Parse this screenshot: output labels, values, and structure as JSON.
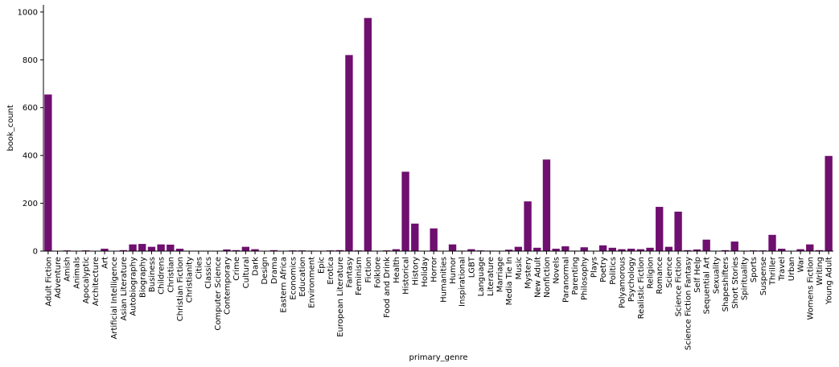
{
  "chart_data": {
    "type": "bar",
    "xlabel": "primary_genre",
    "ylabel": "book_count",
    "ylim": [
      0,
      1030
    ],
    "yticks": [
      0,
      200,
      400,
      600,
      800,
      1000
    ],
    "bar_color": "#6f0f6f",
    "grid": false,
    "categories": [
      "Adult Fiction",
      "Adventure",
      "Amish",
      "Animals",
      "Apocalyptic",
      "Architecture",
      "Art",
      "Artificial Intelligence",
      "Asian Literature",
      "Autobiography",
      "Biography",
      "Business",
      "Childrens",
      "Christian",
      "Christian Fiction",
      "Christianity",
      "Cities",
      "Classics",
      "Computer Science",
      "Contemporary",
      "Crime",
      "Cultural",
      "Dark",
      "Design",
      "Drama",
      "Eastern Africa",
      "Economics",
      "Education",
      "Environment",
      "Epic",
      "Erotica",
      "European Literature",
      "Fantasy",
      "Feminism",
      "Fiction",
      "Folklore",
      "Food and Drink",
      "Health",
      "Historical",
      "History",
      "Holiday",
      "Horror",
      "Humanities",
      "Humor",
      "Inspirational",
      "LGBT",
      "Language",
      "Literature",
      "Marriage",
      "Media Tie In",
      "Music",
      "Mystery",
      "New Adult",
      "Nonfiction",
      "Novels",
      "Paranormal",
      "Parenting",
      "Philosophy",
      "Plays",
      "Poetry",
      "Politics",
      "Polyamorous",
      "Psychology",
      "Realistic Fiction",
      "Religion",
      "Romance",
      "Science",
      "Science Fiction",
      "Science Fiction Fantasy",
      "Self Help",
      "Sequential Art",
      "Sexuality",
      "Shapeshifters",
      "Short Stories",
      "Spirituality",
      "Sports",
      "Suspense",
      "Thriller",
      "Travel",
      "Urban",
      "War",
      "Womens Fiction",
      "Writing",
      "Young Adult"
    ],
    "values": [
      655,
      1,
      3,
      1,
      3,
      1,
      10,
      1,
      4,
      28,
      30,
      18,
      28,
      27,
      10,
      1,
      1,
      1,
      1,
      7,
      4,
      18,
      8,
      1,
      4,
      1,
      3,
      3,
      2,
      1,
      3,
      4,
      820,
      3,
      975,
      1,
      3,
      8,
      332,
      115,
      1,
      95,
      1,
      28,
      2,
      8,
      3,
      2,
      1,
      6,
      18,
      208,
      14,
      383,
      10,
      20,
      2,
      16,
      1,
      24,
      14,
      8,
      10,
      8,
      14,
      185,
      18,
      165,
      4,
      7,
      48,
      1,
      4,
      40,
      2,
      3,
      3,
      68,
      10,
      1,
      8,
      28,
      4,
      398
    ]
  }
}
